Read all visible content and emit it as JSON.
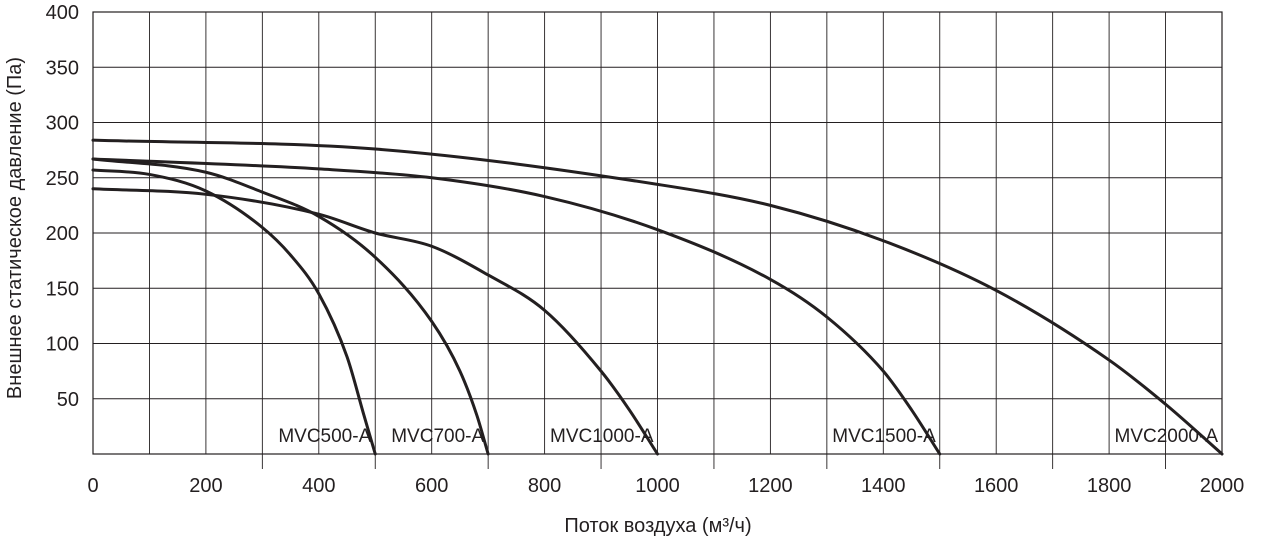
{
  "chart_data": {
    "type": "line",
    "title": "",
    "xlabel": "Поток воздуха (м³/ч)",
    "ylabel": "Внешнее статическое давление (Па)",
    "xlim": [
      0,
      2000
    ],
    "ylim": [
      0,
      400
    ],
    "x_ticks": [
      "0",
      "200",
      "400",
      "600",
      "800",
      "1000",
      "1200",
      "1400",
      "1600",
      "1800",
      "2000"
    ],
    "y_ticks": [
      "50",
      "100",
      "150",
      "200",
      "250",
      "300",
      "350",
      "400"
    ],
    "grid": true,
    "line_color": "#231f20",
    "series": [
      {
        "name": "MVC500-A",
        "x": [
          0,
          100,
          200,
          300,
          350,
          400,
          450,
          480,
          500
        ],
        "y": [
          257,
          253,
          238,
          205,
          180,
          145,
          88,
          35,
          0
        ]
      },
      {
        "name": "MVC700-A",
        "x": [
          0,
          200,
          300,
          400,
          500,
          600,
          650,
          680,
          700
        ],
        "y": [
          267,
          255,
          237,
          215,
          178,
          120,
          75,
          35,
          0
        ]
      },
      {
        "name": "MVC1000-A",
        "x": [
          0,
          200,
          400,
          500,
          600,
          700,
          800,
          900,
          950,
          1000
        ],
        "y": [
          240,
          235,
          217,
          200,
          188,
          162,
          130,
          75,
          40,
          0
        ]
      },
      {
        "name": "MVC1500-A",
        "x": [
          0,
          400,
          600,
          800,
          1000,
          1200,
          1300,
          1400,
          1450,
          1500
        ],
        "y": [
          267,
          258,
          250,
          233,
          203,
          158,
          124,
          75,
          40,
          0
        ]
      },
      {
        "name": "MVC2000-A",
        "x": [
          0,
          500,
          1000,
          1200,
          1400,
          1600,
          1800,
          1900,
          2000
        ],
        "y": [
          284,
          276,
          244,
          225,
          193,
          148,
          85,
          45,
          0
        ]
      }
    ]
  }
}
